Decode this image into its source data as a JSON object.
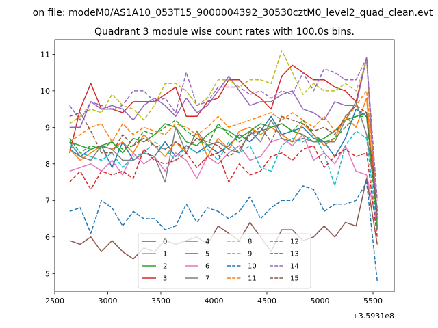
{
  "chart_data": {
    "type": "line",
    "suptitle": "on file: modeM0/AS1A10_053T15_9000004392_30530cztM0_level2_quad_clean.evt",
    "title": "Quadrant 3 module wise count rates with 100.0s bins.",
    "xlabel": "",
    "ylabel": "",
    "x_offset_label": "+3.5931e8",
    "xlim": [
      2500,
      5700
    ],
    "ylim": [
      4.5,
      11.4
    ],
    "xticks": [
      2500,
      3000,
      3500,
      4000,
      4500,
      5000,
      5500
    ],
    "yticks": [
      5,
      6,
      7,
      8,
      9,
      10,
      11
    ],
    "grid": false,
    "legend": {
      "position": "bottom-center",
      "columns": 4
    },
    "x": [
      2640,
      2740,
      2840,
      2940,
      3040,
      3140,
      3240,
      3340,
      3440,
      3540,
      3640,
      3740,
      3840,
      3940,
      4040,
      4140,
      4240,
      4340,
      4440,
      4540,
      4640,
      4740,
      4840,
      4940,
      5040,
      5140,
      5240,
      5340,
      5440,
      5540
    ],
    "series": [
      {
        "name": "0",
        "color": "#1f77b4",
        "dash": "solid",
        "values": [
          8.4,
          8.2,
          8.4,
          8.5,
          7.9,
          8.6,
          8.1,
          8.3,
          8.2,
          8.6,
          8.2,
          8.5,
          8.3,
          8.5,
          8.3,
          8.5,
          8.8,
          8.6,
          8.9,
          9.3,
          8.8,
          8.9,
          9.0,
          8.7,
          8.6,
          8.2,
          8.7,
          9.5,
          9.3,
          6.7
        ]
      },
      {
        "name": "1",
        "color": "#ff7f0e",
        "dash": "solid",
        "values": [
          8.4,
          8.1,
          8.3,
          8.5,
          8.4,
          8.6,
          8.3,
          8.8,
          8.5,
          8.2,
          8.6,
          8.3,
          8.9,
          8.2,
          8.7,
          8.4,
          8.9,
          9.0,
          8.8,
          9.0,
          8.8,
          8.6,
          9.1,
          8.8,
          8.5,
          8.7,
          9.3,
          9.0,
          9.8,
          6.4
        ]
      },
      {
        "name": "2",
        "color": "#2ca02c",
        "dash": "solid",
        "values": [
          8.6,
          8.5,
          8.4,
          8.5,
          8.6,
          8.3,
          8.7,
          8.6,
          8.8,
          9.1,
          9.0,
          8.6,
          8.5,
          8.8,
          9.0,
          8.9,
          8.7,
          8.9,
          9.1,
          9.0,
          9.1,
          8.9,
          8.8,
          8.6,
          8.7,
          8.9,
          9.2,
          9.3,
          9.4,
          6.5
        ]
      },
      {
        "name": "3",
        "color": "#d62728",
        "dash": "solid",
        "values": [
          8.3,
          9.5,
          10.2,
          9.5,
          9.5,
          9.4,
          9.7,
          9.7,
          9.7,
          9.9,
          10.1,
          9.3,
          9.3,
          9.7,
          9.8,
          10.3,
          10.3,
          10.0,
          9.8,
          9.5,
          10.4,
          10.7,
          10.5,
          10.3,
          10.3,
          10.1,
          10.0,
          9.7,
          10.9,
          6.2
        ]
      },
      {
        "name": "4",
        "color": "#9467bd",
        "dash": "solid",
        "values": [
          9.0,
          9.0,
          9.7,
          9.5,
          9.6,
          9.5,
          9.2,
          9.6,
          9.8,
          9.6,
          9.3,
          9.8,
          9.4,
          9.6,
          10.0,
          10.4,
          10.0,
          9.6,
          9.7,
          9.7,
          9.9,
          10.0,
          9.5,
          9.4,
          9.2,
          9.7,
          9.6,
          9.6,
          10.9,
          6.5
        ]
      },
      {
        "name": "5",
        "color": "#8c564b",
        "dash": "solid",
        "values": [
          5.9,
          5.8,
          6.0,
          5.6,
          5.9,
          5.6,
          5.4,
          5.7,
          5.6,
          5.9,
          5.8,
          5.9,
          6.0,
          5.8,
          6.3,
          6.1,
          5.9,
          6.4,
          6.0,
          5.6,
          6.2,
          6.2,
          5.9,
          6.0,
          6.3,
          6.0,
          6.4,
          6.3,
          7.6,
          5.8
        ]
      },
      {
        "name": "6",
        "color": "#e377c2",
        "dash": "solid",
        "values": [
          7.8,
          7.9,
          8.0,
          7.8,
          8.1,
          7.7,
          8.3,
          8.0,
          8.2,
          7.8,
          8.3,
          8.1,
          7.6,
          8.2,
          8.0,
          8.3,
          8.5,
          8.1,
          8.2,
          8.6,
          8.7,
          8.5,
          8.8,
          8.1,
          8.3,
          8.0,
          8.5,
          7.8,
          7.7,
          6.3
        ]
      },
      {
        "name": "7",
        "color": "#7f7f7f",
        "dash": "solid",
        "values": [
          8.6,
          8.2,
          8.1,
          8.5,
          8.4,
          8.1,
          8.1,
          8.3,
          8.2,
          7.5,
          9.0,
          8.3,
          8.9,
          8.5,
          8.6,
          8.4,
          8.3,
          8.9,
          8.6,
          9.2,
          8.7,
          8.6,
          8.7,
          8.6,
          8.6,
          8.6,
          9.2,
          9.7,
          8.8,
          6.8
        ]
      },
      {
        "name": "8",
        "color": "#bcbd22",
        "dash": "dashed",
        "values": [
          9.1,
          9.3,
          9.5,
          9.4,
          9.9,
          9.6,
          9.5,
          9.2,
          9.6,
          10.2,
          10.2,
          10.0,
          9.6,
          9.8,
          10.3,
          10.3,
          10.1,
          10.3,
          10.3,
          10.2,
          11.1,
          10.5,
          9.9,
          10.2,
          10.0,
          10.0,
          10.2,
          10.0,
          10.8,
          7.0
        ]
      },
      {
        "name": "9",
        "color": "#17becf",
        "dash": "dashed",
        "values": [
          8.5,
          8.3,
          8.2,
          8.1,
          8.3,
          7.9,
          8.2,
          8.3,
          8.6,
          8.4,
          8.1,
          8.5,
          8.3,
          8.4,
          8.1,
          8.6,
          8.3,
          8.5,
          7.9,
          7.8,
          8.5,
          8.7,
          8.6,
          8.8,
          8.3,
          7.4,
          8.5,
          8.9,
          8.7,
          6.2
        ]
      },
      {
        "name": "10",
        "color": "#1f77b4",
        "dash": "dashed",
        "values": [
          6.7,
          6.8,
          6.1,
          7.0,
          6.8,
          6.3,
          6.7,
          6.5,
          6.5,
          6.2,
          6.3,
          6.9,
          6.4,
          6.8,
          6.7,
          6.5,
          6.7,
          7.1,
          6.5,
          6.8,
          7.0,
          7.0,
          7.4,
          7.3,
          6.7,
          6.9,
          6.9,
          7.0,
          7.5,
          4.8
        ]
      },
      {
        "name": "11",
        "color": "#ff7f0e",
        "dash": "dashed",
        "values": [
          8.6,
          8.8,
          9.0,
          9.1,
          8.6,
          9.1,
          8.8,
          9.0,
          8.9,
          8.8,
          9.1,
          9.0,
          8.8,
          9.0,
          9.3,
          9.0,
          9.1,
          9.2,
          9.3,
          9.4,
          9.2,
          9.4,
          9.2,
          9.0,
          9.3,
          8.9,
          9.2,
          9.6,
          10.0,
          7.0
        ]
      },
      {
        "name": "12",
        "color": "#2ca02c",
        "dash": "dashed",
        "values": [
          8.7,
          8.3,
          8.5,
          8.4,
          8.6,
          8.4,
          8.5,
          8.9,
          8.8,
          9.0,
          9.2,
          8.9,
          8.7,
          8.5,
          9.1,
          8.8,
          8.6,
          8.8,
          8.9,
          9.0,
          9.1,
          8.9,
          9.2,
          8.8,
          8.6,
          8.7,
          9.0,
          9.3,
          9.3,
          6.3
        ]
      },
      {
        "name": "13",
        "color": "#d62728",
        "dash": "dashed",
        "values": [
          7.5,
          7.8,
          7.3,
          7.8,
          7.7,
          7.8,
          7.6,
          8.4,
          8.1,
          8.0,
          8.1,
          8.3,
          7.9,
          8.2,
          8.3,
          7.5,
          8.0,
          7.7,
          7.8,
          8.2,
          8.3,
          8.1,
          8.4,
          8.5,
          7.9,
          8.2,
          8.4,
          8.2,
          8.3,
          6.0
        ]
      },
      {
        "name": "14",
        "color": "#9467bd",
        "dash": "dashed",
        "values": [
          9.6,
          9.2,
          9.7,
          9.6,
          9.5,
          9.6,
          10.0,
          10.0,
          9.7,
          9.8,
          9.4,
          10.5,
          9.6,
          9.7,
          10.1,
          10.1,
          10.1,
          9.9,
          10.0,
          9.8,
          10.0,
          9.9,
          10.5,
          10.0,
          10.6,
          10.5,
          10.3,
          10.3,
          10.9,
          7.0
        ]
      },
      {
        "name": "15",
        "color": "#8c564b",
        "dash": "dashed",
        "values": [
          9.3,
          9.4,
          8.9,
          8.3,
          8.3,
          8.8,
          8.5,
          8.7,
          8.5,
          8.4,
          8.6,
          8.4,
          8.7,
          8.6,
          8.5,
          8.2,
          8.4,
          8.8,
          9.0,
          8.6,
          9.3,
          9.2,
          9.1,
          8.9,
          9.0,
          8.8,
          9.3,
          9.6,
          9.4,
          6.6
        ]
      }
    ]
  }
}
